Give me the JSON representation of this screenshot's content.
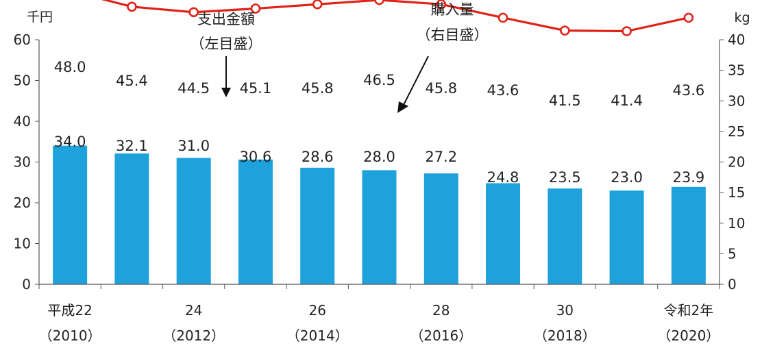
{
  "chart_data": {
    "type": "bar+line",
    "categories": [
      "2010",
      "2011",
      "2012",
      "2013",
      "2014",
      "2015",
      "2016",
      "2017",
      "2018",
      "2019",
      "2020"
    ],
    "x_tick_labels": [
      {
        "index": 0,
        "line1": "平成22",
        "line2": "（2010）"
      },
      {
        "index": 2,
        "line1": "24",
        "line2": "（2012）"
      },
      {
        "index": 4,
        "line1": "26",
        "line2": "（2014）"
      },
      {
        "index": 6,
        "line1": "28",
        "line2": "（2016）"
      },
      {
        "index": 8,
        "line1": "30",
        "line2": "（2018）"
      },
      {
        "index": 10,
        "line1": "令和2年",
        "line2": "（2020）"
      }
    ],
    "bar_series": {
      "axis": "left",
      "color": "#1fa1dc",
      "values": [
        34.0,
        32.1,
        31.0,
        30.6,
        28.6,
        28.0,
        27.2,
        24.8,
        23.5,
        23.0,
        23.9
      ]
    },
    "line_series": {
      "axis": "right",
      "color": "#e02318",
      "values": [
        48.0,
        45.4,
        44.5,
        45.1,
        45.8,
        46.5,
        45.8,
        43.6,
        41.5,
        41.4,
        43.6
      ]
    },
    "left_axis": {
      "unit": "千円",
      "ylim": [
        0,
        60
      ],
      "ticks": [
        0,
        10,
        20,
        30,
        40,
        50,
        60
      ]
    },
    "right_axis": {
      "unit": "kg",
      "ylim": [
        0,
        40
      ],
      "ticks": [
        0,
        5,
        10,
        15,
        20,
        25,
        30,
        35,
        40
      ]
    },
    "annotations": [
      {
        "line1": "支出金額",
        "line2": "（左目盛）"
      },
      {
        "line1": "購入量",
        "line2": "（右目盛）"
      }
    ],
    "grid": false
  }
}
